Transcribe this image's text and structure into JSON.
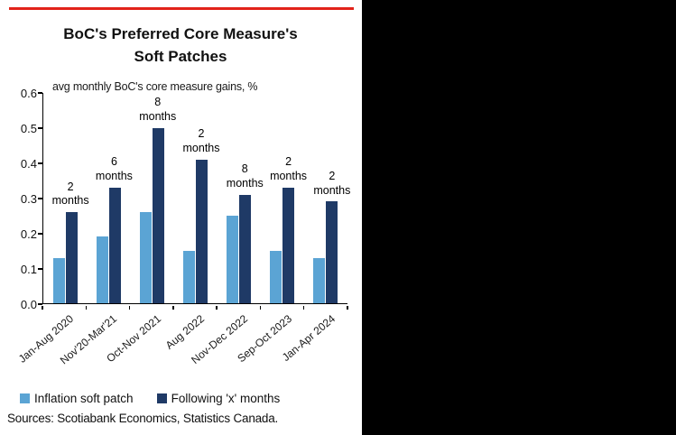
{
  "canvas": {
    "background": "#000000",
    "panel_background": "#ffffff",
    "accent_line_color": "#e2231a"
  },
  "chart_data": {
    "type": "bar",
    "title": "BoC's Preferred Core Measure's Soft Patches",
    "title_lines": [
      "BoC's Preferred Core Measure's",
      "Soft Patches"
    ],
    "subtitle": "avg monthly BoC's core measure gains, %",
    "categories": [
      "Jan-Aug 2020",
      "Nov'20-Mar'21",
      "Oct-Nov 2021",
      "Aug 2022",
      "Nov-Dec 2022",
      "Sep-Oct 2023",
      "Jan-Apr 2024"
    ],
    "series": [
      {
        "name": "Inflation soft patch",
        "color": "#5ba4d4",
        "values": [
          0.13,
          0.19,
          0.26,
          0.15,
          0.25,
          0.15,
          0.13
        ]
      },
      {
        "name": "Following 'x' months",
        "color": "#1f3a66",
        "values": [
          0.26,
          0.33,
          0.5,
          0.41,
          0.31,
          0.33,
          0.29
        ]
      }
    ],
    "annotations": [
      {
        "count": "2",
        "unit": "months"
      },
      {
        "count": "6",
        "unit": "months"
      },
      {
        "count": "8",
        "unit": "months"
      },
      {
        "count": "2",
        "unit": "months"
      },
      {
        "count": "8",
        "unit": "months"
      },
      {
        "count": "2",
        "unit": "months"
      },
      {
        "count": "2",
        "unit": "months"
      }
    ],
    "ylim": [
      0,
      0.6
    ],
    "yticks": [
      "0.0",
      "0.1",
      "0.2",
      "0.3",
      "0.4",
      "0.5",
      "0.6"
    ],
    "grid": false,
    "legend_position": "bottom"
  },
  "footer": {
    "sources": "Sources: Scotiabank Economics, Statistics Canada."
  }
}
